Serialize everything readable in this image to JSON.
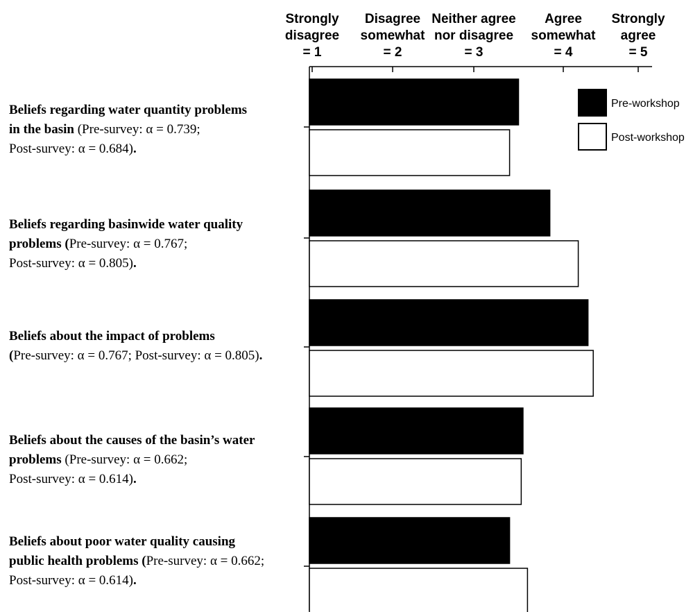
{
  "chart_data": {
    "type": "bar",
    "orientation": "horizontal",
    "xlim": [
      1,
      5
    ],
    "ticks": [
      {
        "value": 1,
        "label_lines": [
          "Strongly",
          "disagree",
          "= 1"
        ]
      },
      {
        "value": 2,
        "label_lines": [
          "Disagree",
          "somewhat",
          "= 2"
        ]
      },
      {
        "value": 3,
        "label_lines": [
          "Neither agree",
          "nor disagree",
          "= 3"
        ]
      },
      {
        "value": 4,
        "label_lines": [
          "Agree",
          "somewhat",
          "= 4"
        ]
      },
      {
        "value": 5,
        "label_lines": [
          "Strongly",
          "agree",
          "= 5"
        ]
      }
    ],
    "categories": [
      {
        "lines": [
          [
            {
              "text": "Beliefs regarding water quantity problems",
              "bold": true
            }
          ],
          [
            {
              "text": "in the basin ",
              "bold": true
            },
            {
              "text": " (Pre-survey: α = 0.739;",
              "bold": false
            }
          ],
          [
            {
              "text": "Post-survey: α = 0.684)",
              "bold": false
            },
            {
              "text": ".",
              "bold": true
            }
          ]
        ]
      },
      {
        "lines": [
          [
            {
              "text": "Beliefs regarding basinwide water quality",
              "bold": true
            }
          ],
          [
            {
              "text": "problems (",
              "bold": true
            },
            {
              "text": "Pre-survey: α = 0.767;",
              "bold": false
            }
          ],
          [
            {
              "text": "Post-survey: α = 0.805)",
              "bold": false
            },
            {
              "text": ".",
              "bold": true
            }
          ]
        ]
      },
      {
        "lines": [
          [
            {
              "text": "Beliefs about the impact of problems",
              "bold": true
            }
          ],
          [
            {
              "text": "(",
              "bold": true
            },
            {
              "text": "Pre-survey: α = 0.767; Post-survey: α = 0.805)",
              "bold": false
            },
            {
              "text": ".",
              "bold": true
            }
          ]
        ]
      },
      {
        "lines": [
          [
            {
              "text": "Beliefs about the causes of the basin’s water",
              "bold": true
            }
          ],
          [
            {
              "text": "problems ",
              "bold": true
            },
            {
              "text": " (Pre-survey: α = 0.662;",
              "bold": false
            }
          ],
          [
            {
              "text": "Post-survey: α = 0.614)",
              "bold": false
            },
            {
              "text": ".",
              "bold": true
            }
          ]
        ]
      },
      {
        "lines": [
          [
            {
              "text": "Beliefs about poor water quality causing",
              "bold": true
            }
          ],
          [
            {
              "text": "public health problems (",
              "bold": true
            },
            {
              "text": "Pre-survey: α = 0.662;",
              "bold": false
            }
          ],
          [
            {
              "text": "Post-survey: α = 0.614)",
              "bold": false
            },
            {
              "text": ".",
              "bold": true
            }
          ]
        ]
      }
    ],
    "series": [
      {
        "name": "Pre-workshop",
        "color": "#000000",
        "values": [
          3.5,
          3.85,
          4.33,
          3.55,
          3.4
        ]
      },
      {
        "name": "Post-workshop",
        "color": "#ffffff",
        "values": [
          3.4,
          4.2,
          4.4,
          3.53,
          3.6
        ]
      }
    ],
    "legend_position": "top-right",
    "grid": false
  }
}
